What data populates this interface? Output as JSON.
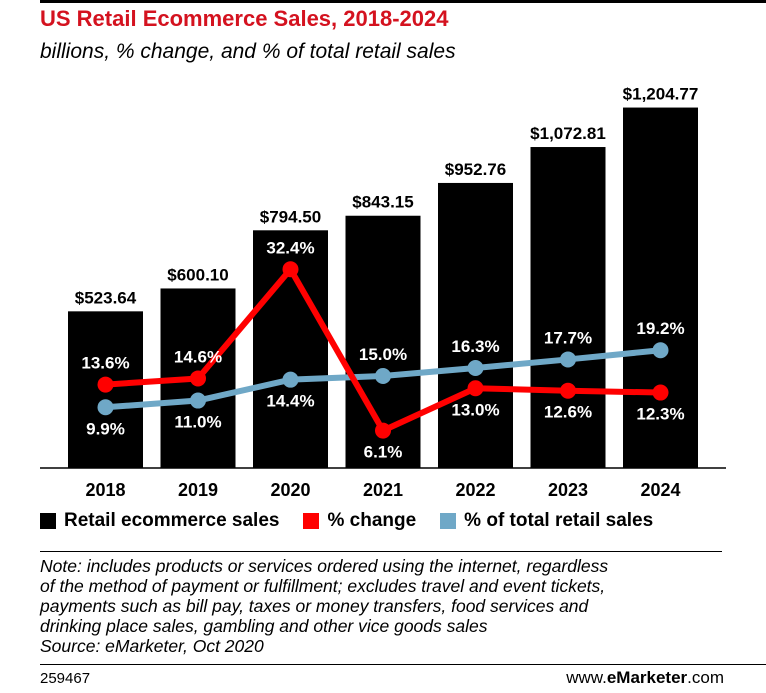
{
  "header": {
    "title": "US Retail Ecommerce Sales, 2018-2024",
    "subtitle": "billions, % change, and % of total retail sales"
  },
  "chart_data": {
    "type": "bar",
    "title": "US Retail Ecommerce Sales, 2018-2024",
    "subtitle": "billions, % change, and % of total retail sales",
    "categories": [
      "2018",
      "2019",
      "2020",
      "2021",
      "2022",
      "2023",
      "2024"
    ],
    "series": [
      {
        "name": "Retail ecommerce sales",
        "type": "bar",
        "values": [
          523.64,
          600.1,
          794.5,
          843.15,
          952.76,
          1072.81,
          1204.77
        ],
        "labels": [
          "$523.64",
          "$600.10",
          "$794.50",
          "$843.15",
          "$952.76",
          "$1,072.81",
          "$1,204.77"
        ],
        "color": "#000000"
      },
      {
        "name": "% change",
        "type": "line",
        "values": [
          13.6,
          14.6,
          32.4,
          6.1,
          13.0,
          12.6,
          12.3
        ],
        "labels": [
          "13.6%",
          "14.6%",
          "32.4%",
          "6.1%",
          "13.0%",
          "12.6%",
          "12.3%"
        ],
        "color": "#ff0000"
      },
      {
        "name": "% of total retail sales",
        "type": "line",
        "values": [
          9.9,
          11.0,
          14.4,
          15.0,
          16.3,
          17.7,
          19.2
        ],
        "labels": [
          "9.9%",
          "11.0%",
          "14.4%",
          "15.0%",
          "16.3%",
          "17.7%",
          "19.2%"
        ],
        "color": "#6fa8c7"
      }
    ],
    "ylim": [
      0,
      1230
    ],
    "line_ylim": [
      0,
      60
    ],
    "grid": false,
    "legend": "bottom"
  },
  "legend": {
    "items": [
      {
        "label": "Retail ecommerce sales",
        "color": "#000000"
      },
      {
        "label": "% change",
        "color": "#ff0000"
      },
      {
        "label": "% of total retail sales",
        "color": "#6fa8c7"
      }
    ]
  },
  "note": {
    "lines": [
      "Note: includes products or services ordered using the internet, regardless",
      "of the method of payment or fulfillment; excludes travel and event tickets,",
      "payments such as bill pay, taxes or money transfers, food services and",
      "drinking place sales, gambling and other vice goods sales",
      "Source: eMarketer, Oct 2020"
    ]
  },
  "footer": {
    "chart_id": "259467",
    "brand_prefix": "www.",
    "brand_name": "eMarketer",
    "brand_suffix": ".com"
  }
}
